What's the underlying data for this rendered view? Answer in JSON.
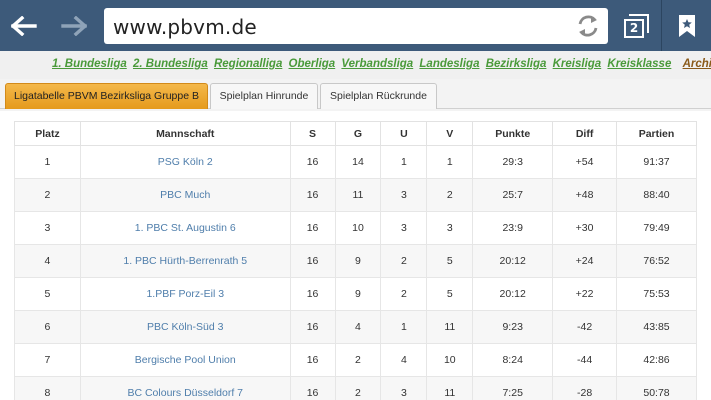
{
  "browser": {
    "url": "www.pbvm.de",
    "tab_count": "2",
    "icons": [
      "back-arrow-icon",
      "forward-arrow-icon",
      "reload-icon",
      "tabs-icon",
      "bookmark-icon"
    ]
  },
  "leagues": {
    "items": [
      "1. Bundesliga",
      "2. Bundesliga",
      "Regionalliga",
      "Oberliga",
      "Verbandsliga",
      "Landesliga",
      "Bezirksliga",
      "Kreisliga",
      "Kreisklasse"
    ],
    "archiv": "Archiv"
  },
  "tabs": [
    "Ligatabelle PBVM Bezirksliga Gruppe B",
    "Spielplan Hinrunde",
    "Spielplan Rückrunde"
  ],
  "table": {
    "headers": [
      "Platz",
      "Mannschaft",
      "S",
      "G",
      "U",
      "V",
      "Punkte",
      "Diff",
      "Partien"
    ],
    "rows": [
      [
        "1",
        "PSG Köln 2",
        "16",
        "14",
        "1",
        "1",
        "29:3",
        "+54",
        "91:37"
      ],
      [
        "2",
        "PBC Much",
        "16",
        "11",
        "3",
        "2",
        "25:7",
        "+48",
        "88:40"
      ],
      [
        "3",
        "1. PBC St. Augustin 6",
        "16",
        "10",
        "3",
        "3",
        "23:9",
        "+30",
        "79:49"
      ],
      [
        "4",
        "1. PBC Hürth-Berrenrath 5",
        "16",
        "9",
        "2",
        "5",
        "20:12",
        "+24",
        "76:52"
      ],
      [
        "5",
        "1.PBF Porz-Eil 3",
        "16",
        "9",
        "2",
        "5",
        "20:12",
        "+22",
        "75:53"
      ],
      [
        "6",
        "PBC Köln-Süd 3",
        "16",
        "4",
        "1",
        "11",
        "9:23",
        "-42",
        "43:85"
      ],
      [
        "7",
        "Bergische Pool Union",
        "16",
        "2",
        "4",
        "10",
        "8:24",
        "-44",
        "42:86"
      ],
      [
        "8",
        "BC Colours Düsseldorf 7",
        "16",
        "2",
        "3",
        "11",
        "7:25",
        "-28",
        "50:78"
      ]
    ]
  }
}
